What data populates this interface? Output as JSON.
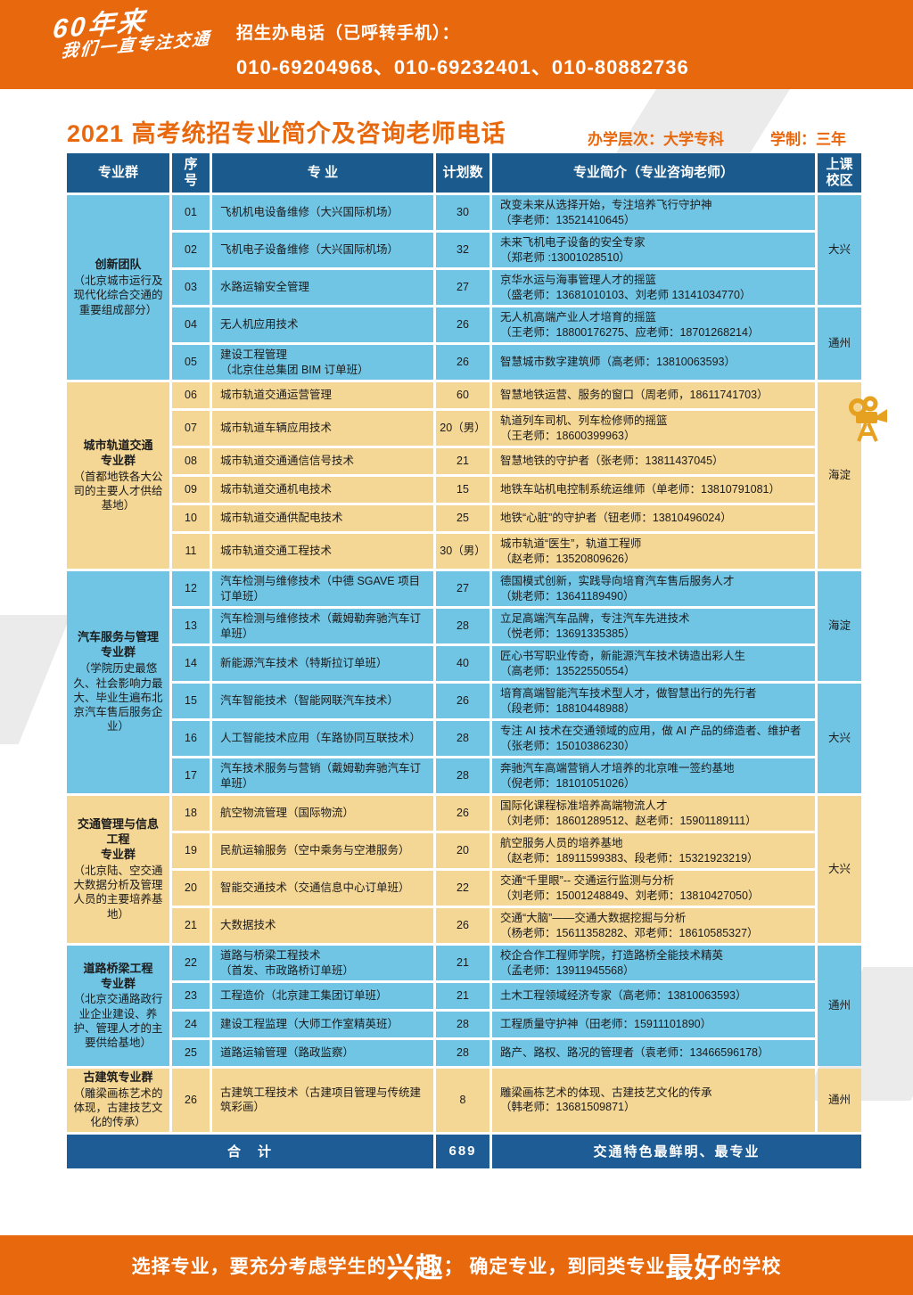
{
  "banner": {
    "logo_line1": "60年来",
    "logo_line2": "我们一直专注交通",
    "phone_label": "招生办电话（已呼转手机）：",
    "phone_numbers": "010-69204968、010-69232401、010-80882736"
  },
  "title": "2021 高考统招专业简介及咨询老师电话",
  "meta": {
    "level": "办学层次：大学专科",
    "schooling": "学制：三年"
  },
  "colors": {
    "accent_orange": "#E8680E",
    "header_navy": "#1A5A8C",
    "row_blue": "#70C5E5",
    "row_beige": "#F4D695",
    "total_navy": "#1E5C95",
    "camera_gold": "#E7A120"
  },
  "icons": {
    "camera": "movie-camera-icon"
  },
  "table": {
    "headers": [
      "专业群",
      "序\n号",
      "专  业",
      "计划数",
      "专业简介（专业咨询老师）",
      "上课\n校区"
    ],
    "groups": [
      {
        "name": "创新团队",
        "desc": "（北京城市运行及现代化综合交通的重要组成部分）",
        "theme": "blue",
        "campus": [
          {
            "label": "大兴",
            "span": 3
          },
          {
            "label": "通州",
            "span": 2
          }
        ],
        "rows": [
          {
            "no": "01",
            "major": "飞机机电设备维修（大兴国际机场）",
            "plan": "30",
            "intro": "改变未来从选择开始，专注培养飞行守护神\n（李老师：13521410645）"
          },
          {
            "no": "02",
            "major": "飞机电子设备维修（大兴国际机场）",
            "plan": "32",
            "intro": "未来飞机电子设备的安全专家\n（郑老师 :13001028510）"
          },
          {
            "no": "03",
            "major": "水路运输安全管理",
            "plan": "27",
            "intro": "京华水运与海事管理人才的摇篮\n（盛老师：13681010103、刘老师 13141034770）"
          },
          {
            "no": "04",
            "major": "无人机应用技术",
            "plan": "26",
            "intro": "无人机高端产业人才培育的摇篮\n（王老师：18800176275、应老师：18701268214）"
          },
          {
            "no": "05",
            "major": "建设工程管理\n（北京住总集团 BIM 订单班）",
            "plan": "26",
            "intro": "智慧城市数字建筑师（高老师：13810063593）"
          }
        ]
      },
      {
        "name": "城市轨道交通\n专业群",
        "desc": "（首都地铁各大公司的主要人才供给基地）",
        "theme": "beige",
        "campus": [
          {
            "label": "海淀",
            "span": 6
          }
        ],
        "rows": [
          {
            "no": "06",
            "major": "城市轨道交通运营管理",
            "plan": "60",
            "intro": "智慧地铁运营、服务的窗口（周老师，18611741703）"
          },
          {
            "no": "07",
            "major": "城市轨道车辆应用技术",
            "plan": "20（男）",
            "intro": "轨道列车司机、列车检修师的摇篮\n（王老师：18600399963）"
          },
          {
            "no": "08",
            "major": "城市轨道交通通信信号技术",
            "plan": "21",
            "intro": "智慧地铁的守护者（张老师：13811437045）"
          },
          {
            "no": "09",
            "major": "城市轨道交通机电技术",
            "plan": "15",
            "intro": "地铁车站机电控制系统运维师（单老师：13810791081）"
          },
          {
            "no": "10",
            "major": "城市轨道交通供配电技术",
            "plan": "25",
            "intro": "地铁“心脏”的守护者（钮老师：13810496024）"
          },
          {
            "no": "11",
            "major": "城市轨道交通工程技术",
            "plan": "30（男）",
            "intro": "城市轨道“医生”，轨道工程师\n（赵老师：13520809626）"
          }
        ]
      },
      {
        "name": "汽车服务与管理\n专业群",
        "desc": "（学院历史最悠久、社会影响力最大、毕业生遍布北京汽车售后服务企业）",
        "theme": "blue",
        "campus": [
          {
            "label": "海淀",
            "span": 3
          },
          {
            "label": "大兴",
            "span": 3
          }
        ],
        "rows": [
          {
            "no": "12",
            "major": "汽车检测与维修技术（中德 SGAVE 项目订单班）",
            "plan": "27",
            "intro": "德国模式创新，实践导向培育汽车售后服务人才\n（姚老师：13641189490）"
          },
          {
            "no": "13",
            "major": "汽车检测与维修技术（戴姆勒奔驰汽车订单班）",
            "plan": "28",
            "intro": "立足高端汽车品牌，专注汽车先进技术\n（悦老师：13691335385）"
          },
          {
            "no": "14",
            "major": "新能源汽车技术（特斯拉订单班）",
            "plan": "40",
            "intro": "匠心书写职业传奇，新能源汽车技术铸造出彩人生\n（高老师：13522550554）"
          },
          {
            "no": "15",
            "major": "汽车智能技术（智能网联汽车技术）",
            "plan": "26",
            "intro": "培育高端智能汽车技术型人才，做智慧出行的先行者\n（段老师：18810448988）"
          },
          {
            "no": "16",
            "major": "人工智能技术应用（车路协同互联技术）",
            "plan": "28",
            "intro": "专注 AI 技术在交通领域的应用，做 AI 产品的缔造者、维护者（张老师：15010386230）"
          },
          {
            "no": "17",
            "major": "汽车技术服务与营销（戴姆勒奔驰汽车订单班）",
            "plan": "28",
            "intro": "奔驰汽车高端营销人才培养的北京唯一签约基地\n（倪老师：18101051026）"
          }
        ]
      },
      {
        "name": "交通管理与信息\n工程\n专业群",
        "desc": "（北京陆、空交通大数据分析及管理人员的主要培养基地）",
        "theme": "beige",
        "campus": [
          {
            "label": "大兴",
            "span": 4
          }
        ],
        "rows": [
          {
            "no": "18",
            "major": "航空物流管理（国际物流）",
            "plan": "26",
            "intro": "国际化课程标准培养高端物流人才\n（刘老师：18601289512、赵老师：15901189111）"
          },
          {
            "no": "19",
            "major": "民航运输服务（空中乘务与空港服务）",
            "plan": "20",
            "intro": "航空服务人员的培养基地\n（赵老师：18911599383、段老师：15321923219）"
          },
          {
            "no": "20",
            "major": "智能交通技术（交通信息中心订单班）",
            "plan": "22",
            "intro": "交通“千里眼”-- 交通运行监测与分析\n（刘老师：15001248849、刘老师：13810427050）"
          },
          {
            "no": "21",
            "major": "大数据技术",
            "plan": "26",
            "intro": "交通“大脑”——交通大数据挖掘与分析\n（杨老师：15611358282、邓老师：18610585327）"
          }
        ]
      },
      {
        "name": "道路桥梁工程\n专业群",
        "desc": "（北京交通路政行业企业建设、养护、管理人才的主要供给基地）",
        "theme": "blue",
        "campus": [
          {
            "label": "通州",
            "span": 4
          }
        ],
        "rows": [
          {
            "no": "22",
            "major": "道路与桥梁工程技术\n（首发、市政路桥订单班）",
            "plan": "21",
            "intro": "校企合作工程师学院，打造路桥全能技术精英\n（孟老师：13911945568）"
          },
          {
            "no": "23",
            "major": "工程造价（北京建工集团订单班）",
            "plan": "21",
            "intro": "土木工程领域经济专家（高老师：13810063593）"
          },
          {
            "no": "24",
            "major": "建设工程监理（大师工作室精英班）",
            "plan": "28",
            "intro": "工程质量守护神（田老师：15911101890）"
          },
          {
            "no": "25",
            "major": "道路运输管理（路政监察）",
            "plan": "28",
            "intro": "路产、路权、路况的管理者（袁老师：13466596178）"
          }
        ]
      },
      {
        "name": "古建筑专业群",
        "desc": "（雕梁画栋艺术的体现，古建技艺文化的传承）",
        "theme": "beige",
        "campus": [
          {
            "label": "通州",
            "span": 1
          }
        ],
        "rows": [
          {
            "no": "26",
            "major": "古建筑工程技术（古建项目管理与传统建筑彩画）",
            "plan": "8",
            "intro": "雕梁画栋艺术的体现、古建技艺文化的传承\n（韩老师：13681509871）"
          }
        ]
      }
    ],
    "total": {
      "label": "合　计",
      "count": "689",
      "note": "交通特色最鲜明、最专业"
    }
  },
  "footer": {
    "segments": [
      {
        "text": "选择专业，要充分考虑学生的",
        "big": false
      },
      {
        "text": "兴趣",
        "big": true
      },
      {
        "text": "；  确定专业，到同类专业",
        "big": false
      },
      {
        "text": "最好",
        "big": true
      },
      {
        "text": "的学校",
        "big": false
      }
    ]
  }
}
